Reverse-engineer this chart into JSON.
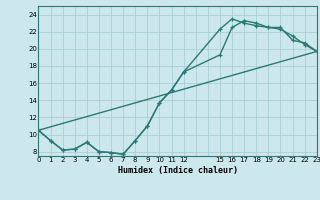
{
  "xlabel": "Humidex (Indice chaleur)",
  "background_color": "#cce8ec",
  "grid_color": "#aad0d5",
  "line_color": "#2a7a75",
  "xlim": [
    0,
    23
  ],
  "ylim": [
    7.5,
    25
  ],
  "xtick_positions": [
    0,
    1,
    2,
    3,
    4,
    5,
    6,
    7,
    8,
    9,
    10,
    11,
    12,
    13,
    14,
    15,
    16,
    17,
    18,
    19,
    20,
    21,
    22,
    23
  ],
  "xtick_labels": [
    "0",
    "1",
    "2",
    "3",
    "4",
    "5",
    "6",
    "7",
    "8",
    "9",
    "10",
    "11",
    "12",
    "",
    "",
    "15",
    "16",
    "17",
    "18",
    "19",
    "20",
    "21",
    "22",
    "23"
  ],
  "ytick_positions": [
    8,
    10,
    12,
    14,
    16,
    18,
    20,
    22,
    24
  ],
  "ytick_labels": [
    "8",
    "10",
    "12",
    "14",
    "16",
    "18",
    "20",
    "22",
    "24"
  ],
  "line1_x": [
    0,
    1,
    2,
    3,
    4,
    5,
    6,
    7,
    8,
    9,
    10,
    11,
    12,
    15,
    16,
    17,
    18,
    19,
    20,
    21,
    22,
    23
  ],
  "line1_y": [
    10.5,
    9.3,
    8.2,
    8.3,
    9.1,
    8.0,
    7.9,
    7.7,
    9.3,
    11.0,
    13.7,
    15.2,
    17.3,
    19.3,
    22.5,
    23.3,
    23.0,
    22.5,
    22.5,
    21.0,
    20.7,
    19.7
  ],
  "line2_x": [
    0,
    1,
    2,
    3,
    4,
    5,
    6,
    7,
    8,
    9,
    10,
    11,
    12,
    15,
    16,
    17,
    18,
    19,
    20,
    21,
    22,
    23
  ],
  "line2_y": [
    10.5,
    9.3,
    8.2,
    8.3,
    9.1,
    8.0,
    7.9,
    7.7,
    9.3,
    11.0,
    13.7,
    15.2,
    17.3,
    22.3,
    23.5,
    23.0,
    22.7,
    22.5,
    22.3,
    21.5,
    20.5,
    19.7
  ],
  "line3_x": [
    0,
    23
  ],
  "line3_y": [
    10.5,
    19.7
  ],
  "marker_size": 3,
  "line_width": 1.0
}
